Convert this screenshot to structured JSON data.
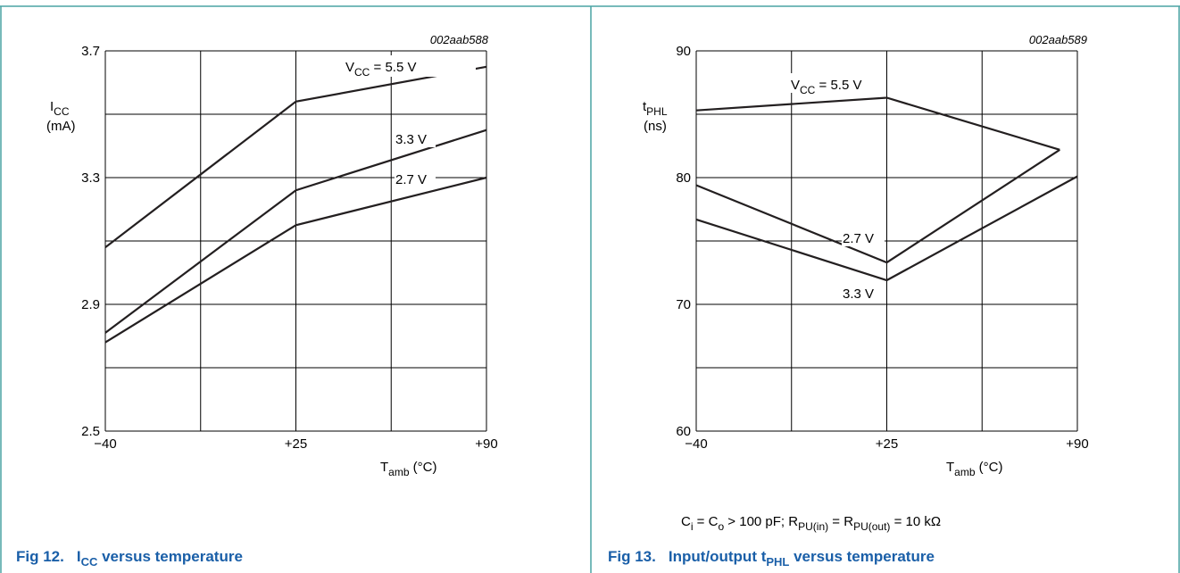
{
  "colors": {
    "frame": "#4aa3a3",
    "caption": "#1a5fa8",
    "grid": "#000000",
    "series": "#231f20"
  },
  "figures": [
    {
      "id": "fig12",
      "code": "002aab588",
      "ylabel_main": "I",
      "ylabel_sub": "CC",
      "ylabel_unit": "(mA)",
      "xlabel_main": "T",
      "xlabel_sub": "amb",
      "xlabel_unit": " (°C)",
      "xticks": [
        "−40",
        "+25",
        "+90"
      ],
      "yticks": [
        "2.5",
        "2.9",
        "3.3",
        "3.7"
      ],
      "caption_num": "Fig 12.",
      "caption_main": "I",
      "caption_sub": "CC",
      "caption_rest": " versus temperature",
      "series_labels": {
        "top_prefix": "V",
        "top_sub": "CC",
        "top_suffix": " = 5.5 V",
        "mid": "3.3 V",
        "low": "2.7 V"
      }
    },
    {
      "id": "fig13",
      "code": "002aab589",
      "ylabel_main": "t",
      "ylabel_sub": "PHL",
      "ylabel_unit": "(ns)",
      "xlabel_main": "T",
      "xlabel_sub": "amb",
      "xlabel_unit": " (°C)",
      "xticks": [
        "−40",
        "+25",
        "+90"
      ],
      "yticks": [
        "60",
        "70",
        "80",
        "90"
      ],
      "caption_num": "Fig 13.",
      "caption_main": "Input/output t",
      "caption_sub": "PHL",
      "caption_rest": " versus temperature",
      "series_labels": {
        "top_prefix": "V",
        "top_sub": "CC",
        "top_suffix": " = 5.5 V",
        "mid": "2.7 V",
        "low": "3.3 V"
      },
      "condition": {
        "p1": "C",
        "p1s": "i",
        "p2": " = C",
        "p2s": "o",
        "p3": " > 100 pF; R",
        "p3s": "PU(in)",
        "p4": " = R",
        "p4s": "PU(out)",
        "p5": " = 10 kΩ"
      }
    }
  ],
  "chart_data": [
    {
      "type": "line",
      "title": "",
      "xlabel": "Tamb (°C)",
      "ylabel": "ICC (mA)",
      "xlim": [
        -40,
        90
      ],
      "ylim": [
        2.5,
        3.7
      ],
      "grid": true,
      "series": [
        {
          "name": "VCC = 5.5 V",
          "x": [
            -40,
            25,
            90
          ],
          "y": [
            3.08,
            3.54,
            3.65
          ]
        },
        {
          "name": "3.3 V",
          "x": [
            -40,
            25,
            90
          ],
          "y": [
            2.81,
            3.26,
            3.45
          ]
        },
        {
          "name": "2.7 V",
          "x": [
            -40,
            25,
            90
          ],
          "y": [
            2.78,
            3.15,
            3.3
          ]
        }
      ]
    },
    {
      "type": "line",
      "title": "",
      "xlabel": "Tamb (°C)",
      "ylabel": "tPHL (ns)",
      "xlim": [
        -40,
        90
      ],
      "ylim": [
        60,
        90
      ],
      "grid": true,
      "series": [
        {
          "name": "VCC = 5.5 V",
          "x": [
            -40,
            25,
            84
          ],
          "y": [
            85.3,
            86.3,
            82.2
          ]
        },
        {
          "name": "2.7 V",
          "x": [
            -40,
            25,
            84
          ],
          "y": [
            79.4,
            73.3,
            82.2
          ]
        },
        {
          "name": "3.3 V",
          "x": [
            -40,
            25,
            90
          ],
          "y": [
            76.7,
            71.9,
            80.1
          ]
        }
      ]
    }
  ]
}
